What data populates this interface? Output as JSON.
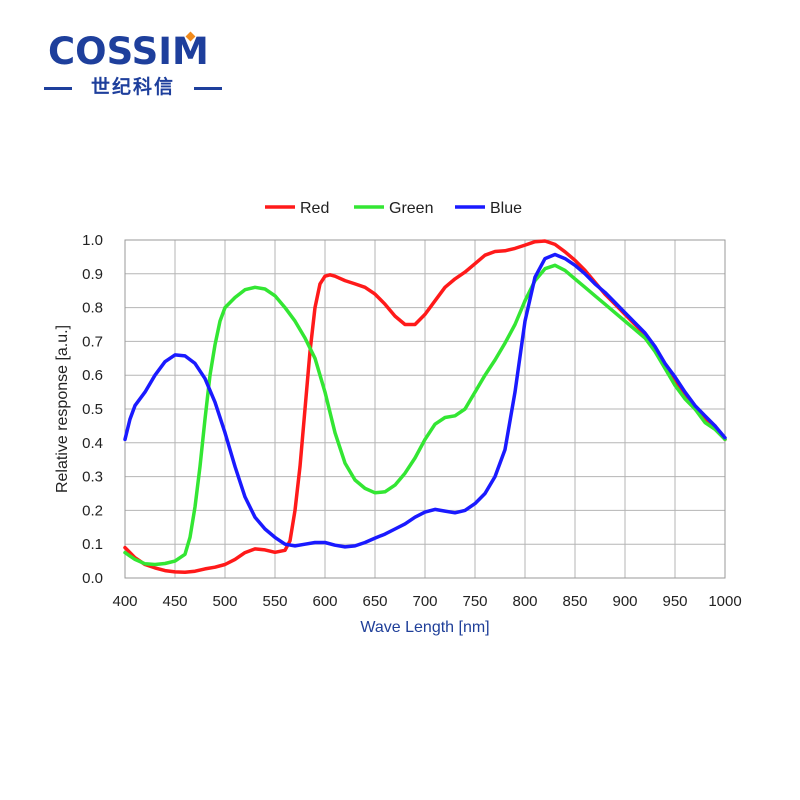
{
  "logo": {
    "brand": "COSSIM",
    "subtitle": "世纪科信",
    "colors": {
      "brand_blue": "#1e3f9c",
      "accent_orange": "#f08a1c"
    }
  },
  "chart_data": {
    "type": "line",
    "xlabel": "Wave Length [nm]",
    "ylabel": "Relative response [a.u.]",
    "xlim": [
      400,
      1000
    ],
    "ylim": [
      0.0,
      1.0
    ],
    "xticks": [
      400,
      450,
      500,
      550,
      600,
      650,
      700,
      750,
      800,
      850,
      900,
      950,
      1000
    ],
    "yticks": [
      0.0,
      0.1,
      0.2,
      0.3,
      0.4,
      0.5,
      0.6,
      0.7,
      0.8,
      0.9,
      1.0
    ],
    "ytick_labels": [
      "0.0",
      "0.1",
      "0.2",
      "0.3",
      "0.4",
      "0.5",
      "0.6",
      "0.7",
      "0.8",
      "0.9",
      "1.0"
    ],
    "grid": true,
    "legend_position": "top-center",
    "series": [
      {
        "name": "Red",
        "color": "#ff1a1a",
        "points": [
          [
            400,
            0.09
          ],
          [
            410,
            0.06
          ],
          [
            420,
            0.04
          ],
          [
            430,
            0.03
          ],
          [
            440,
            0.022
          ],
          [
            450,
            0.018
          ],
          [
            460,
            0.017
          ],
          [
            470,
            0.02
          ],
          [
            480,
            0.027
          ],
          [
            490,
            0.032
          ],
          [
            500,
            0.04
          ],
          [
            510,
            0.055
          ],
          [
            520,
            0.075
          ],
          [
            530,
            0.086
          ],
          [
            540,
            0.083
          ],
          [
            550,
            0.076
          ],
          [
            560,
            0.082
          ],
          [
            565,
            0.11
          ],
          [
            570,
            0.2
          ],
          [
            575,
            0.33
          ],
          [
            580,
            0.5
          ],
          [
            585,
            0.67
          ],
          [
            590,
            0.8
          ],
          [
            595,
            0.87
          ],
          [
            600,
            0.893
          ],
          [
            605,
            0.897
          ],
          [
            610,
            0.893
          ],
          [
            620,
            0.88
          ],
          [
            630,
            0.87
          ],
          [
            640,
            0.86
          ],
          [
            650,
            0.84
          ],
          [
            660,
            0.81
          ],
          [
            670,
            0.775
          ],
          [
            680,
            0.75
          ],
          [
            690,
            0.75
          ],
          [
            700,
            0.78
          ],
          [
            710,
            0.82
          ],
          [
            720,
            0.86
          ],
          [
            730,
            0.885
          ],
          [
            740,
            0.905
          ],
          [
            750,
            0.93
          ],
          [
            760,
            0.955
          ],
          [
            770,
            0.966
          ],
          [
            780,
            0.968
          ],
          [
            790,
            0.975
          ],
          [
            800,
            0.985
          ],
          [
            810,
            0.995
          ],
          [
            820,
            0.997
          ],
          [
            830,
            0.987
          ],
          [
            840,
            0.965
          ],
          [
            850,
            0.94
          ],
          [
            860,
            0.91
          ],
          [
            870,
            0.875
          ],
          [
            880,
            0.84
          ],
          [
            890,
            0.81
          ],
          [
            900,
            0.78
          ],
          [
            910,
            0.75
          ],
          [
            920,
            0.72
          ],
          [
            930,
            0.68
          ],
          [
            940,
            0.63
          ],
          [
            950,
            0.58
          ],
          [
            960,
            0.54
          ],
          [
            970,
            0.5
          ],
          [
            980,
            0.47
          ],
          [
            990,
            0.45
          ],
          [
            1000,
            0.41
          ]
        ]
      },
      {
        "name": "Green",
        "color": "#33e633",
        "points": [
          [
            400,
            0.075
          ],
          [
            410,
            0.055
          ],
          [
            420,
            0.042
          ],
          [
            430,
            0.04
          ],
          [
            440,
            0.043
          ],
          [
            450,
            0.05
          ],
          [
            460,
            0.07
          ],
          [
            465,
            0.12
          ],
          [
            470,
            0.21
          ],
          [
            475,
            0.33
          ],
          [
            480,
            0.47
          ],
          [
            485,
            0.6
          ],
          [
            490,
            0.69
          ],
          [
            495,
            0.76
          ],
          [
            500,
            0.8
          ],
          [
            510,
            0.83
          ],
          [
            520,
            0.853
          ],
          [
            530,
            0.86
          ],
          [
            540,
            0.855
          ],
          [
            550,
            0.835
          ],
          [
            560,
            0.8
          ],
          [
            570,
            0.76
          ],
          [
            580,
            0.71
          ],
          [
            590,
            0.65
          ],
          [
            600,
            0.55
          ],
          [
            610,
            0.43
          ],
          [
            620,
            0.34
          ],
          [
            630,
            0.29
          ],
          [
            640,
            0.265
          ],
          [
            650,
            0.252
          ],
          [
            660,
            0.255
          ],
          [
            670,
            0.275
          ],
          [
            680,
            0.31
          ],
          [
            690,
            0.355
          ],
          [
            700,
            0.41
          ],
          [
            710,
            0.455
          ],
          [
            720,
            0.475
          ],
          [
            730,
            0.48
          ],
          [
            740,
            0.5
          ],
          [
            750,
            0.55
          ],
          [
            760,
            0.6
          ],
          [
            770,
            0.645
          ],
          [
            780,
            0.695
          ],
          [
            790,
            0.75
          ],
          [
            800,
            0.82
          ],
          [
            810,
            0.88
          ],
          [
            820,
            0.915
          ],
          [
            830,
            0.925
          ],
          [
            840,
            0.91
          ],
          [
            850,
            0.885
          ],
          [
            860,
            0.86
          ],
          [
            870,
            0.835
          ],
          [
            880,
            0.81
          ],
          [
            890,
            0.785
          ],
          [
            900,
            0.76
          ],
          [
            910,
            0.735
          ],
          [
            920,
            0.71
          ],
          [
            930,
            0.67
          ],
          [
            940,
            0.62
          ],
          [
            950,
            0.57
          ],
          [
            960,
            0.53
          ],
          [
            970,
            0.5
          ],
          [
            980,
            0.46
          ],
          [
            990,
            0.44
          ],
          [
            1000,
            0.41
          ]
        ]
      },
      {
        "name": "Blue",
        "color": "#1a1aff",
        "points": [
          [
            400,
            0.41
          ],
          [
            405,
            0.47
          ],
          [
            410,
            0.51
          ],
          [
            420,
            0.55
          ],
          [
            430,
            0.6
          ],
          [
            440,
            0.64
          ],
          [
            450,
            0.66
          ],
          [
            460,
            0.657
          ],
          [
            470,
            0.635
          ],
          [
            480,
            0.59
          ],
          [
            490,
            0.52
          ],
          [
            500,
            0.43
          ],
          [
            510,
            0.33
          ],
          [
            520,
            0.24
          ],
          [
            530,
            0.18
          ],
          [
            540,
            0.145
          ],
          [
            550,
            0.12
          ],
          [
            560,
            0.1
          ],
          [
            570,
            0.095
          ],
          [
            580,
            0.1
          ],
          [
            590,
            0.105
          ],
          [
            600,
            0.105
          ],
          [
            610,
            0.097
          ],
          [
            620,
            0.092
          ],
          [
            630,
            0.095
          ],
          [
            640,
            0.105
          ],
          [
            650,
            0.118
          ],
          [
            660,
            0.13
          ],
          [
            670,
            0.145
          ],
          [
            680,
            0.16
          ],
          [
            690,
            0.18
          ],
          [
            700,
            0.195
          ],
          [
            710,
            0.203
          ],
          [
            720,
            0.198
          ],
          [
            730,
            0.193
          ],
          [
            740,
            0.2
          ],
          [
            750,
            0.22
          ],
          [
            760,
            0.25
          ],
          [
            770,
            0.3
          ],
          [
            780,
            0.38
          ],
          [
            790,
            0.55
          ],
          [
            800,
            0.76
          ],
          [
            810,
            0.89
          ],
          [
            820,
            0.945
          ],
          [
            830,
            0.957
          ],
          [
            840,
            0.945
          ],
          [
            850,
            0.925
          ],
          [
            860,
            0.9
          ],
          [
            870,
            0.87
          ],
          [
            880,
            0.845
          ],
          [
            890,
            0.815
          ],
          [
            900,
            0.785
          ],
          [
            910,
            0.755
          ],
          [
            920,
            0.725
          ],
          [
            930,
            0.685
          ],
          [
            940,
            0.635
          ],
          [
            950,
            0.595
          ],
          [
            960,
            0.55
          ],
          [
            970,
            0.51
          ],
          [
            980,
            0.48
          ],
          [
            990,
            0.45
          ],
          [
            1000,
            0.415
          ]
        ]
      }
    ]
  }
}
